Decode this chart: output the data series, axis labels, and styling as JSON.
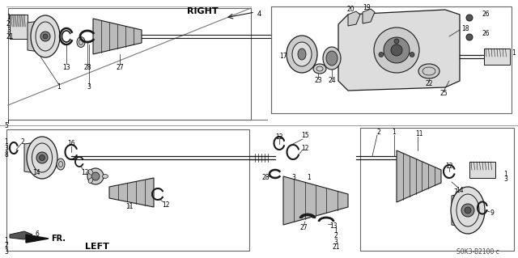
{
  "background_color": "#ffffff",
  "diagram_code": "S0K3-B2100 c",
  "right_label": "RIGHT",
  "left_label": "LEFT",
  "fr_label": "FR.",
  "fig_width": 6.4,
  "fig_height": 3.19,
  "dpi": 100,
  "line_color": "#1a1a1a",
  "text_color": "#000000",
  "gray_dark": "#555555",
  "gray_mid": "#888888",
  "gray_light": "#bbbbbb",
  "gray_lighter": "#dddddd",
  "gray_fill": "#cccccc"
}
